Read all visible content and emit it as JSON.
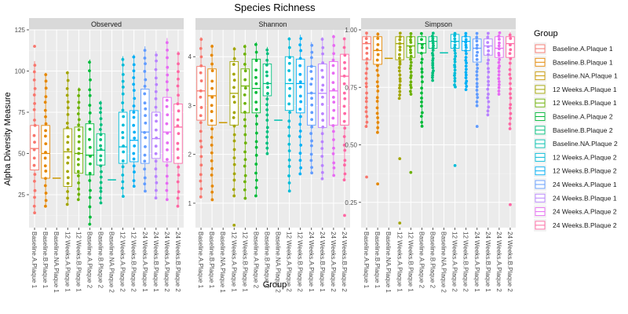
{
  "chart_data": {
    "type": "box",
    "title": "Species Richness",
    "xlabel": "Group",
    "ylabel": "Alpha Diversity Measure",
    "legend": {
      "title": "Group",
      "placement": "right",
      "entries": [
        {
          "name": "Baseline.A.Plaque 1",
          "color": "#F8766D"
        },
        {
          "name": "Baseline.B.Plaque 1",
          "color": "#E58700"
        },
        {
          "name": "Baseline.NA.Plaque 1",
          "color": "#C99800"
        },
        {
          "name": "12 Weeks.A.Plaque 1",
          "color": "#A3A500"
        },
        {
          "name": "12 Weeks.B.Plaque 1",
          "color": "#6BB100"
        },
        {
          "name": "Baseline.A.Plaque 2",
          "color": "#00BA38"
        },
        {
          "name": "Baseline.B.Plaque 2",
          "color": "#00BF7D"
        },
        {
          "name": "Baseline.NA.Plaque 2",
          "color": "#00C0AF"
        },
        {
          "name": "12 Weeks.A.Plaque 2",
          "color": "#00BCD8"
        },
        {
          "name": "12 Weeks.B.Plaque 2",
          "color": "#00B0F6"
        },
        {
          "name": "24 Weeks.A.Plaque 1",
          "color": "#619CFF"
        },
        {
          "name": "24 Weeks.B.Plaque 1",
          "color": "#B983FF"
        },
        {
          "name": "24 Weeks.A.Plaque 2",
          "color": "#E76BF3"
        },
        {
          "name": "24 Weeks.B.Plaque 2",
          "color": "#FF67A4"
        }
      ]
    },
    "categories": [
      "Baseline.A.Plaque 1",
      "Baseline.B.Plaque 1",
      "Baseline.NA.Plaque 1",
      "12 Weeks.A.Plaque 1",
      "12 Weeks.B.Plaque 1",
      "Baseline.A.Plaque 2",
      "Baseline.B.Plaque 2",
      "Baseline.NA.Plaque 2",
      "12 Weeks.A.Plaque 2",
      "12 Weeks.B.Plaque 2",
      "24 Weeks.A.Plaque 1",
      "24 Weeks.B.Plaque 1",
      "24 Weeks.A.Plaque 2",
      "24 Weeks.B.Plaque 2"
    ],
    "panels": [
      {
        "name": "Observed",
        "ylim": [
          5,
          125
        ],
        "yticks": [
          25,
          50,
          75,
          100,
          125
        ],
        "boxes": [
          {
            "min": 14,
            "q1": 40,
            "median": 53,
            "q3": 67,
            "max": 106,
            "outliers": [
              115
            ]
          },
          {
            "min": 18,
            "q1": 35,
            "median": 50,
            "q3": 67,
            "max": 99,
            "outliers": []
          },
          {
            "min": 35,
            "q1": 35,
            "median": 35,
            "q3": 35,
            "max": 35,
            "outliers": []
          },
          {
            "min": 19,
            "q1": 30,
            "median": 51,
            "q3": 65,
            "max": 100,
            "outliers": []
          },
          {
            "min": 22,
            "q1": 38,
            "median": 50,
            "q3": 66,
            "max": 90,
            "outliers": []
          },
          {
            "min": 7,
            "q1": 37,
            "median": 49,
            "q3": 68,
            "max": 107,
            "outliers": []
          },
          {
            "min": 20,
            "q1": 43,
            "median": 52,
            "q3": 62,
            "max": 82,
            "outliers": []
          },
          {
            "min": 34,
            "q1": 34,
            "median": 34,
            "q3": 34,
            "max": 34,
            "outliers": []
          },
          {
            "min": 24,
            "q1": 44,
            "median": 54,
            "q3": 75,
            "max": 109,
            "outliers": []
          },
          {
            "min": 30,
            "q1": 45,
            "median": 58,
            "q3": 76,
            "max": 110,
            "outliers": []
          },
          {
            "min": 27,
            "q1": 44,
            "median": 63,
            "q3": 89,
            "max": 115,
            "outliers": []
          },
          {
            "min": 23,
            "q1": 47,
            "median": 59,
            "q3": 75,
            "max": 112,
            "outliers": []
          },
          {
            "min": 22,
            "q1": 45,
            "median": 63,
            "q3": 84,
            "max": 120,
            "outliers": []
          },
          {
            "min": 18,
            "q1": 44,
            "median": 66,
            "q3": 80,
            "max": 112,
            "outliers": []
          }
        ]
      },
      {
        "name": "Shannon",
        "ylim": [
          0.5,
          4.55
        ],
        "yticks": [
          1,
          2,
          3,
          4
        ],
        "boxes": [
          {
            "min": 1.1,
            "q1": 2.7,
            "median": 3.3,
            "q3": 3.8,
            "max": 4.4,
            "outliers": []
          },
          {
            "min": 1.05,
            "q1": 2.6,
            "median": 3.2,
            "q3": 3.75,
            "max": 4.25,
            "outliers": []
          },
          {
            "min": 2.65,
            "q1": 2.65,
            "median": 2.65,
            "q3": 2.65,
            "max": 2.65,
            "outliers": []
          },
          {
            "min": 1.15,
            "q1": 2.6,
            "median": 3.25,
            "q3": 3.9,
            "max": 4.2,
            "outliers": [
              0.55
            ]
          },
          {
            "min": 1.1,
            "q1": 2.85,
            "median": 3.4,
            "q3": 3.75,
            "max": 4.25,
            "outliers": []
          },
          {
            "min": 1.15,
            "q1": 2.85,
            "median": 3.35,
            "q3": 3.95,
            "max": 4.3,
            "outliers": []
          },
          {
            "min": 2.0,
            "q1": 3.2,
            "median": 3.45,
            "q3": 3.85,
            "max": 4.2,
            "outliers": []
          },
          {
            "min": 2.7,
            "q1": 2.7,
            "median": 2.7,
            "q3": 2.7,
            "max": 2.7,
            "outliers": []
          },
          {
            "min": 1.25,
            "q1": 2.9,
            "median": 3.45,
            "q3": 4.0,
            "max": 4.4,
            "outliers": []
          },
          {
            "min": 1.6,
            "q1": 2.85,
            "median": 3.45,
            "q3": 3.95,
            "max": 4.45,
            "outliers": []
          },
          {
            "min": 1.6,
            "q1": 2.6,
            "median": 3.25,
            "q3": 3.8,
            "max": 4.3,
            "outliers": []
          },
          {
            "min": 1.5,
            "q1": 2.55,
            "median": 3.25,
            "q3": 3.85,
            "max": 4.4,
            "outliers": []
          },
          {
            "min": 1.55,
            "q1": 2.6,
            "median": 3.3,
            "q3": 3.9,
            "max": 4.45,
            "outliers": []
          },
          {
            "min": 1.45,
            "q1": 2.6,
            "median": 3.6,
            "q3": 4.05,
            "max": 4.4,
            "outliers": [
              0.75
            ]
          }
        ]
      },
      {
        "name": "Simpson",
        "ylim": [
          0.14,
          1.0
        ],
        "yticks": [
          0.25,
          0.5,
          0.75,
          1.0
        ],
        "yticklabels": [
          "0.25",
          "0.50",
          "0.75",
          "1.00"
        ],
        "boxes": [
          {
            "min": 0.58,
            "q1": 0.87,
            "median": 0.94,
            "q3": 0.97,
            "max": 0.99,
            "outliers": [
              0.36
            ]
          },
          {
            "min": 0.55,
            "q1": 0.85,
            "median": 0.91,
            "q3": 0.97,
            "max": 0.99,
            "outliers": [
              0.33
            ]
          },
          {
            "min": 0.876,
            "q1": 0.876,
            "median": 0.876,
            "q3": 0.876,
            "max": 0.876,
            "outliers": []
          },
          {
            "min": 0.7,
            "q1": 0.87,
            "median": 0.94,
            "q3": 0.97,
            "max": 0.99,
            "outliers": [
              0.44,
              0.16
            ]
          },
          {
            "min": 0.72,
            "q1": 0.88,
            "median": 0.93,
            "q3": 0.97,
            "max": 0.99,
            "outliers": [
              0.38
            ]
          },
          {
            "min": 0.58,
            "q1": 0.9,
            "median": 0.94,
            "q3": 0.97,
            "max": 0.99,
            "outliers": []
          },
          {
            "min": 0.78,
            "q1": 0.92,
            "median": 0.95,
            "q3": 0.97,
            "max": 0.99,
            "outliers": []
          },
          {
            "min": 0.9,
            "q1": 0.9,
            "median": 0.9,
            "q3": 0.9,
            "max": 0.9,
            "outliers": []
          },
          {
            "min": 0.75,
            "q1": 0.92,
            "median": 0.95,
            "q3": 0.98,
            "max": 0.99,
            "outliers": [
              0.41
            ]
          },
          {
            "min": 0.74,
            "q1": 0.91,
            "median": 0.95,
            "q3": 0.97,
            "max": 0.99,
            "outliers": []
          },
          {
            "min": 0.67,
            "q1": 0.86,
            "median": 0.92,
            "q3": 0.96,
            "max": 0.99,
            "outliers": [
              0.58
            ]
          },
          {
            "min": 0.63,
            "q1": 0.89,
            "median": 0.93,
            "q3": 0.96,
            "max": 0.99,
            "outliers": []
          },
          {
            "min": 0.72,
            "q1": 0.88,
            "median": 0.92,
            "q3": 0.97,
            "max": 0.99,
            "outliers": []
          },
          {
            "min": 0.57,
            "q1": 0.88,
            "median": 0.94,
            "q3": 0.97,
            "max": 0.99,
            "outliers": [
              0.24
            ]
          }
        ]
      }
    ]
  }
}
